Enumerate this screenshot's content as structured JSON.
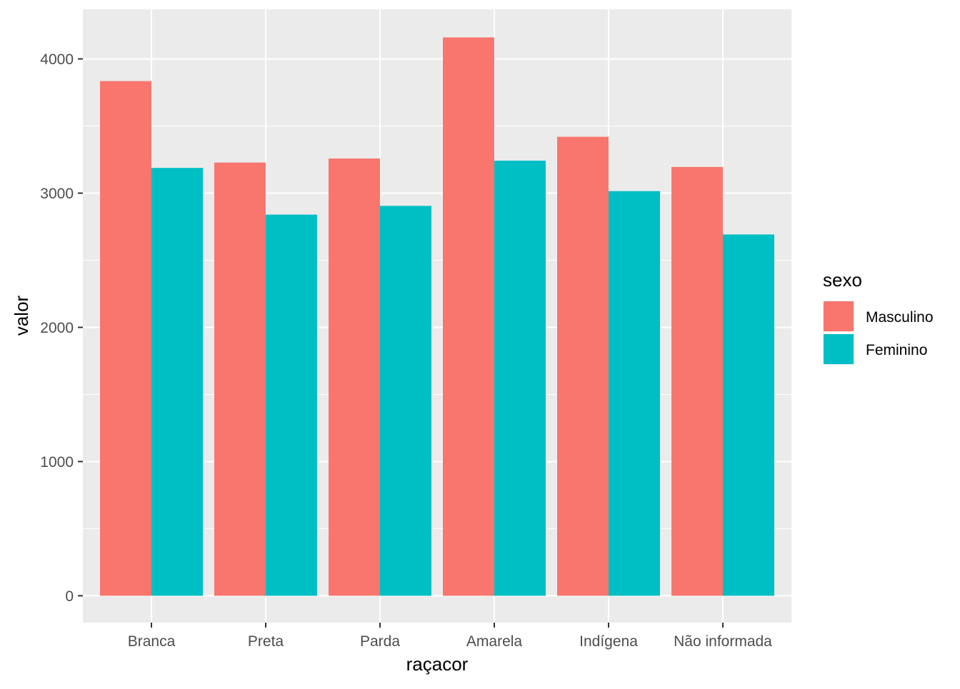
{
  "chart_data": {
    "type": "bar",
    "title": "",
    "xlabel": "raçacor",
    "ylabel": "valor",
    "categories": [
      "Branca",
      "Preta",
      "Parda",
      "Amarela",
      "Indígena",
      "Não informada"
    ],
    "series": [
      {
        "name": "Masculino",
        "color": "#F8766D",
        "values": [
          3835,
          3228,
          3258,
          4160,
          3420,
          3195
        ]
      },
      {
        "name": "Feminino",
        "color": "#00BFC4",
        "values": [
          3188,
          2840,
          2905,
          3242,
          3015,
          2692
        ]
      }
    ],
    "ylim": [
      -200,
      4370
    ],
    "yticks": [
      0,
      1000,
      2000,
      3000,
      4000
    ],
    "ytick_labels": [
      "0",
      "1000",
      "2000",
      "3000",
      "4000"
    ],
    "legend": {
      "title": "sexo",
      "position": "right"
    },
    "grid": true,
    "panel_background": "#EBEBEB",
    "grid_color": "#FFFFFF"
  }
}
